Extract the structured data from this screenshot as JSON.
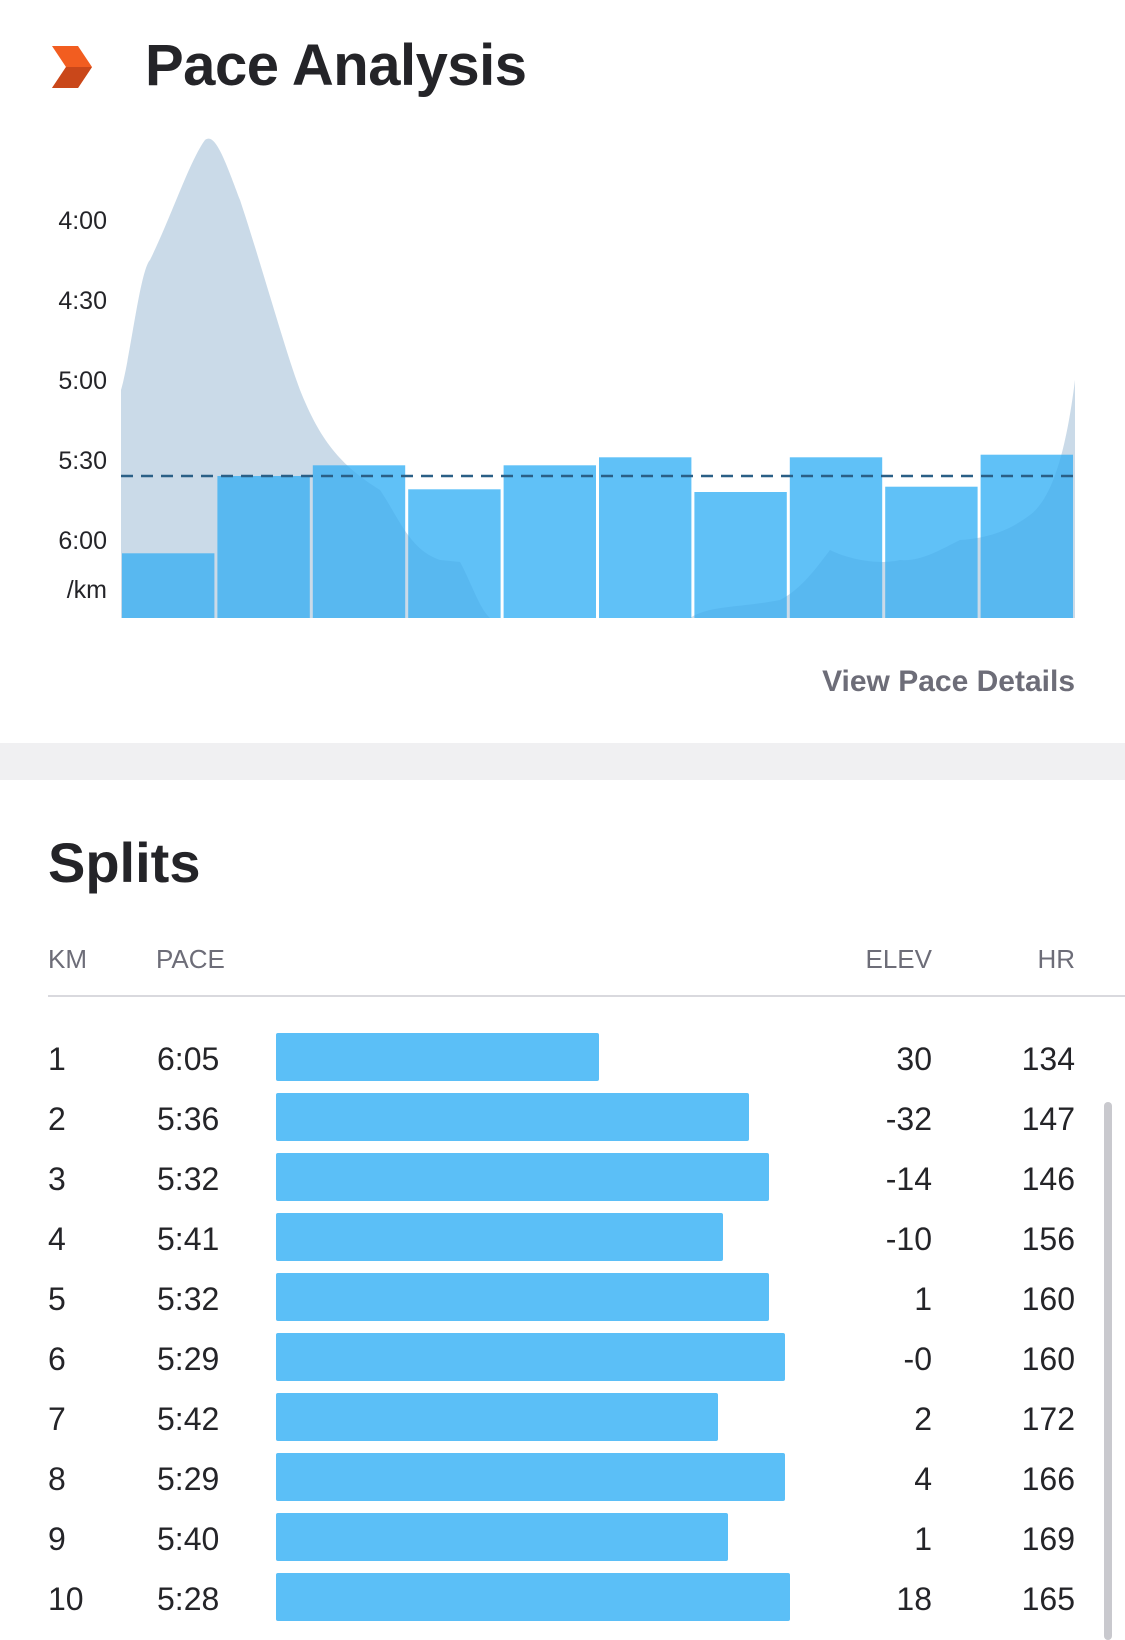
{
  "header": {
    "title": "Pace Analysis",
    "logo_icon": "chevron-right-icon",
    "logo_color": "#f25d20"
  },
  "pace_chart": {
    "y_ticks": [
      "4:00",
      "4:30",
      "5:00",
      "5:30",
      "6:00"
    ],
    "y_unit": "/km",
    "average_pace": "5:36",
    "link_label": "View Pace Details"
  },
  "splits": {
    "title": "Splits",
    "columns": {
      "km": "KM",
      "pace": "PACE",
      "elev": "ELEV",
      "hr": "HR"
    },
    "rows": [
      {
        "km": "1",
        "pace": "6:05",
        "elev": "30",
        "hr": "134"
      },
      {
        "km": "2",
        "pace": "5:36",
        "elev": "-32",
        "hr": "147"
      },
      {
        "km": "3",
        "pace": "5:32",
        "elev": "-14",
        "hr": "146"
      },
      {
        "km": "4",
        "pace": "5:41",
        "elev": "-10",
        "hr": "156"
      },
      {
        "km": "5",
        "pace": "5:32",
        "elev": "1",
        "hr": "160"
      },
      {
        "km": "6",
        "pace": "5:29",
        "elev": "-0",
        "hr": "160"
      },
      {
        "km": "7",
        "pace": "5:42",
        "elev": "2",
        "hr": "172"
      },
      {
        "km": "8",
        "pace": "5:29",
        "elev": "4",
        "hr": "166"
      },
      {
        "km": "9",
        "pace": "5:40",
        "elev": "1",
        "hr": "169"
      },
      {
        "km": "10",
        "pace": "5:28",
        "elev": "18",
        "hr": "165"
      }
    ]
  },
  "colors": {
    "bar": "#5bbff7",
    "elevation_fill": "#ebebed",
    "avg_line": "#2a5f86",
    "accent": "#f25d20"
  },
  "chart_data": {
    "type": "bar",
    "categories": [
      "1",
      "2",
      "3",
      "4",
      "5",
      "6",
      "7",
      "8",
      "9",
      "10"
    ],
    "values": [
      "6:05",
      "5:36",
      "5:32",
      "5:41",
      "5:32",
      "5:29",
      "5:42",
      "5:29",
      "5:40",
      "5:28"
    ],
    "ylabel": "/km",
    "y_ticks": [
      "4:00",
      "4:30",
      "5:00",
      "5:30",
      "6:00"
    ],
    "y_axis_inverted": true,
    "average_line": "5:36",
    "grid": false
  }
}
